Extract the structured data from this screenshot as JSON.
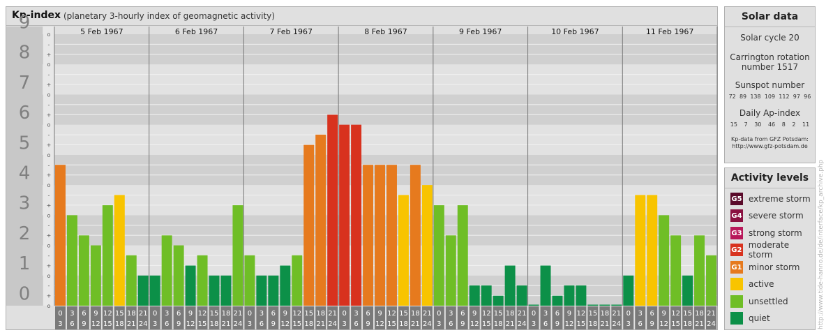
{
  "header": {
    "title": "Kp-index",
    "subtitle": "(planetary 3-hourly index of geomagnetic activity)"
  },
  "chart_data": {
    "type": "bar",
    "title": "Kp-index",
    "subtitle": "(planetary 3-hourly index of geomagnetic activity)",
    "ylim": [
      0,
      9
    ],
    "y_major_ticks": [
      "0",
      "1",
      "2",
      "3",
      "4",
      "5",
      "6",
      "7",
      "8",
      "9"
    ],
    "y_minor_ticks": [
      "o",
      "+",
      "-"
    ],
    "days": [
      "5 Feb 1967",
      "6 Feb 1967",
      "7 Feb 1967",
      "8 Feb 1967",
      "9 Feb 1967",
      "10 Feb 1967",
      "11 Feb 1967"
    ],
    "interval_start_labels": [
      "0",
      "3",
      "6",
      "9",
      "12",
      "15",
      "18",
      "21"
    ],
    "interval_end_labels": [
      "3",
      "6",
      "9",
      "12",
      "15",
      "18",
      "21",
      "24"
    ],
    "values": [
      [
        4.67,
        3.0,
        2.33,
        2.0,
        3.33,
        3.67,
        1.67,
        1.0
      ],
      [
        1.0,
        2.33,
        2.0,
        1.33,
        1.67,
        1.0,
        1.0,
        3.33
      ],
      [
        1.67,
        1.0,
        1.0,
        1.33,
        1.67,
        5.33,
        5.67,
        6.33
      ],
      [
        6.0,
        6.0,
        4.67,
        4.67,
        4.67,
        3.67,
        4.67,
        4.0
      ],
      [
        3.33,
        2.33,
        3.33,
        0.67,
        0.67,
        0.33,
        1.33,
        0.67
      ],
      [
        0.0,
        1.33,
        0.33,
        0.67,
        0.67,
        0.0,
        0.0,
        0.0
      ],
      [
        1.0,
        3.67,
        3.67,
        3.0,
        2.33,
        1.0,
        2.33,
        1.67
      ]
    ],
    "colors": {
      "quiet": "#0c9048",
      "unsettled": "#6fbe26",
      "active": "#f8c400",
      "minor_storm": "#e67a1e",
      "moderate_storm": "#d8321e"
    },
    "grid": true,
    "legend": "right"
  },
  "solar": {
    "title": "Solar data",
    "cycle": "Solar cycle 20",
    "carrington_line1": "Carrington rotation",
    "carrington_line2": "number 1517",
    "sunspot_title": "Sunspot number",
    "sunspot_values": [
      "72",
      "89",
      "138",
      "109",
      "112",
      "97",
      "96"
    ],
    "ap_title": "Daily Ap-index",
    "ap_values": [
      "15",
      "7",
      "30",
      "46",
      "8",
      "2",
      "11"
    ],
    "credit_line1": "Kp-data from GFZ Potsdam:",
    "credit_line2": "http://www.gfz-potsdam.de"
  },
  "levels": {
    "title": "Activity levels",
    "items": [
      {
        "badge": "G5",
        "label": "extreme storm",
        "color": "#5a0a2a"
      },
      {
        "badge": "G4",
        "label": "severe storm",
        "color": "#8a1040"
      },
      {
        "badge": "G3",
        "label": "strong storm",
        "color": "#b8185a"
      },
      {
        "badge": "G2",
        "label": "moderate storm",
        "color": "#d8321e"
      },
      {
        "badge": "G1",
        "label": "minor storm",
        "color": "#e67a1e"
      },
      {
        "badge": "",
        "label": "active",
        "color": "#f8c400"
      },
      {
        "badge": "",
        "label": "unsettled",
        "color": "#6fbe26"
      },
      {
        "badge": "",
        "label": "quiet",
        "color": "#0c9048"
      }
    ]
  },
  "watermark": "http://www.tide-hanno.de/de/interface/kp_archive.php"
}
